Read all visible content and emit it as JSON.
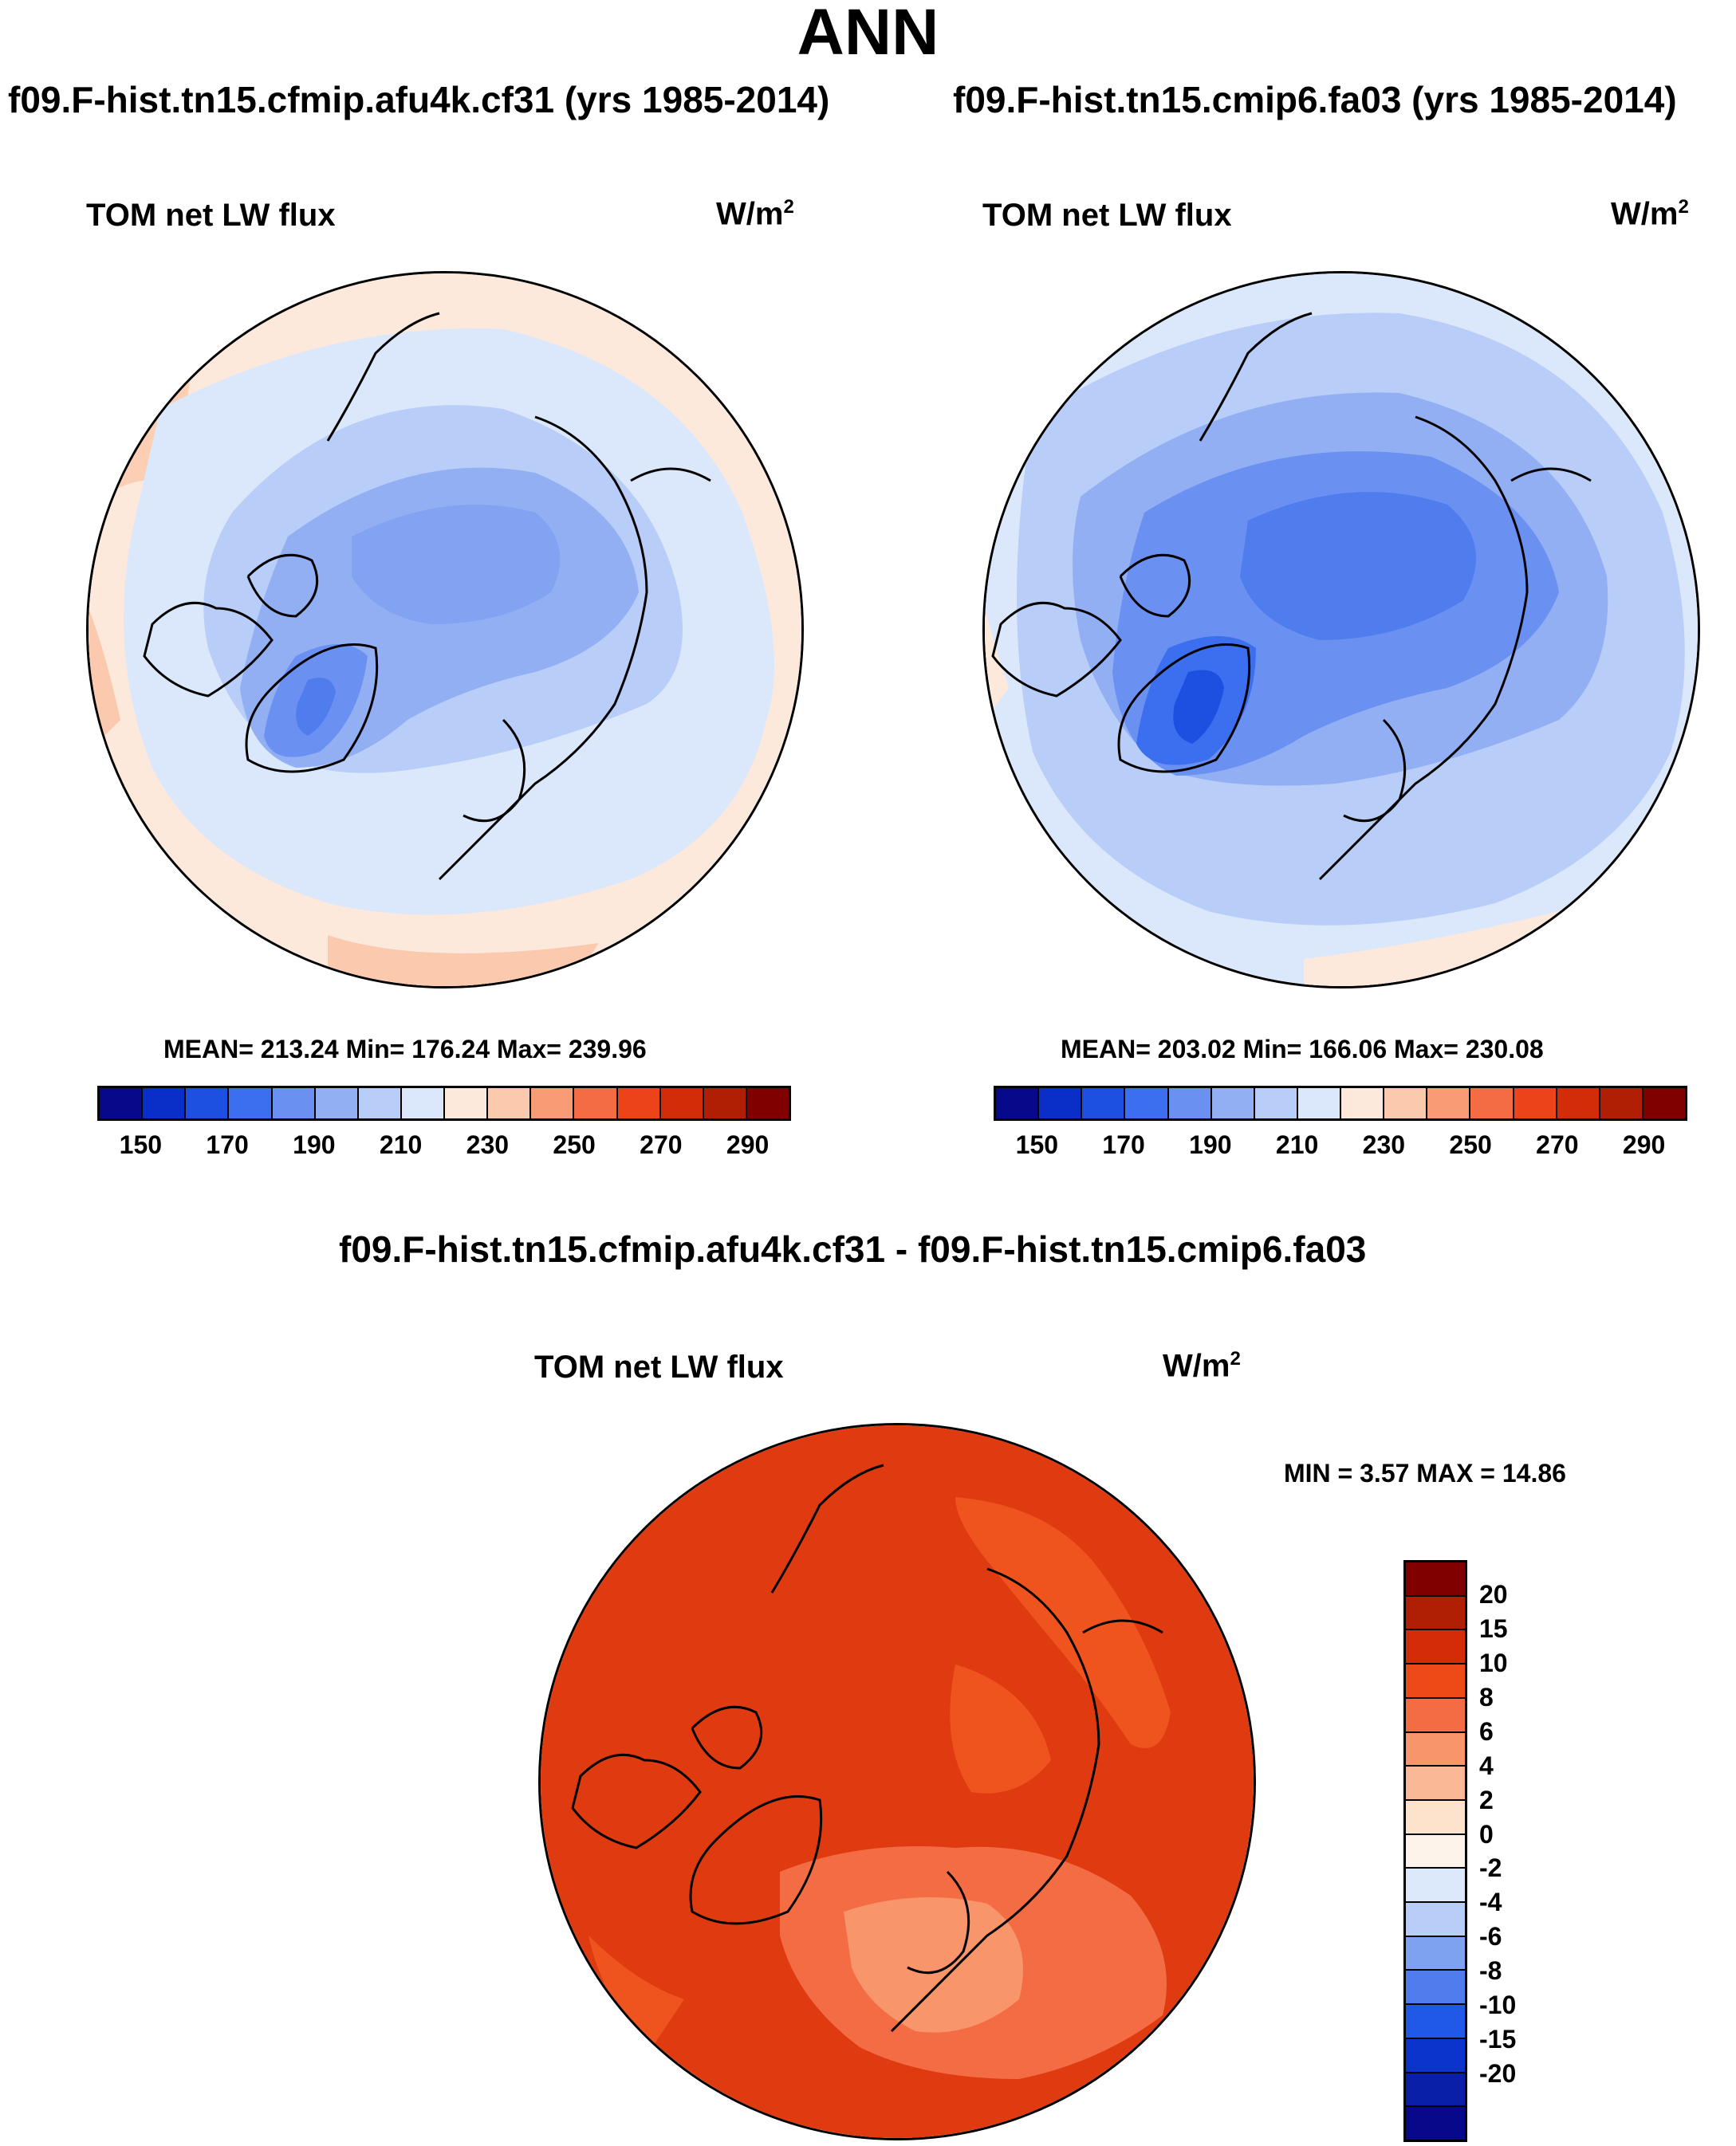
{
  "title": "ANN",
  "panels": [
    {
      "case_title": "f09.F-hist.tn15.cfmip.afu4k.cf31 (yrs 1985-2014)",
      "variable": "TOM net LW flux",
      "units_base": "W/m",
      "units_exp": "2",
      "stats": "MEAN= 213.24  Min= 176.24  Max= 239.96"
    },
    {
      "case_title": "f09.F-hist.tn15.cmip6.fa03 (yrs 1985-2014)",
      "variable": "TOM net LW flux",
      "units_base": "W/m",
      "units_exp": "2",
      "stats": "MEAN= 203.02  Min= 166.06  Max= 230.08"
    }
  ],
  "diff": {
    "case_title": "f09.F-hist.tn15.cfmip.afu4k.cf31 - f09.F-hist.tn15.cmip6.fa03",
    "variable": "TOM net LW flux",
    "units_base": "W/m",
    "units_exp": "2",
    "stats": "MIN =   3.57 MAX =  14.86"
  },
  "chart_data": [
    {
      "type": "heatmap",
      "projection": "north polar stereographic",
      "title": "f09.F-hist.tn15.cfmip.afu4k.cf31 (yrs 1985-2014)",
      "variable": "TOM net LW flux",
      "units": "W/m2",
      "mean": 213.24,
      "min": 176.24,
      "max": 239.96,
      "colorbar_ticks": [
        "150",
        "170",
        "190",
        "210",
        "230",
        "250",
        "270",
        "290"
      ],
      "colorbar_colors": [
        "#08088a",
        "#0a2ec8",
        "#1d4fe0",
        "#3c6ff0",
        "#6a90f2",
        "#92aff4",
        "#b8cdf7",
        "#dbe8fb",
        "#fde9dc",
        "#fbc9ad",
        "#f89c76",
        "#f46c44",
        "#ec4418",
        "#d22c08",
        "#b01e04",
        "#800000"
      ]
    },
    {
      "type": "heatmap",
      "projection": "north polar stereographic",
      "title": "f09.F-hist.tn15.cmip6.fa03 (yrs 1985-2014)",
      "variable": "TOM net LW flux",
      "units": "W/m2",
      "mean": 203.02,
      "min": 166.06,
      "max": 230.08,
      "colorbar_ticks": [
        "150",
        "170",
        "190",
        "210",
        "230",
        "250",
        "270",
        "290"
      ],
      "colorbar_colors": [
        "#08088a",
        "#0a2ec8",
        "#1d4fe0",
        "#3c6ff0",
        "#6a90f2",
        "#92aff4",
        "#b8cdf7",
        "#dbe8fb",
        "#fde9dc",
        "#fbc9ad",
        "#f89c76",
        "#f46c44",
        "#ec4418",
        "#d22c08",
        "#b01e04",
        "#800000"
      ]
    },
    {
      "type": "heatmap",
      "projection": "north polar stereographic",
      "title": "f09.F-hist.tn15.cfmip.afu4k.cf31 - f09.F-hist.tn15.cmip6.fa03",
      "variable": "TOM net LW flux",
      "units": "W/m2",
      "min": 3.57,
      "max": 14.86,
      "colorbar_ticks": [
        "20",
        "15",
        "10",
        "8",
        "6",
        "4",
        "2",
        "0",
        "-2",
        "-4",
        "-6",
        "-8",
        "-10",
        "-15",
        "-20"
      ],
      "colorbar_colors": [
        "#800000",
        "#b01e04",
        "#d42c08",
        "#ee4a18",
        "#f46c44",
        "#f8956a",
        "#fbb896",
        "#fde2cc",
        "#fdf3ea",
        "#dce9fb",
        "#b8cdf7",
        "#7fa2f0",
        "#4f7ded",
        "#2058e8",
        "#0a34cc",
        "#0a1fa8",
        "#08088a"
      ]
    }
  ]
}
